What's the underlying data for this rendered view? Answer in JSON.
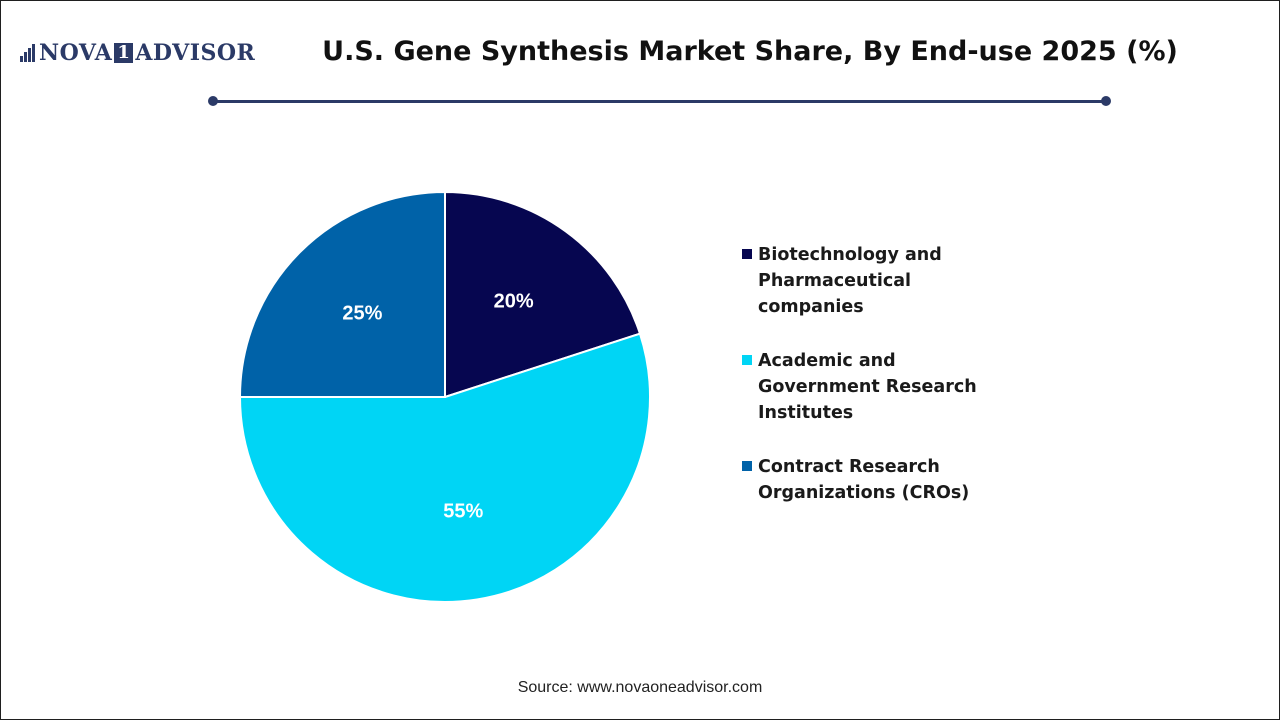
{
  "header": {
    "logo_text_left": "NOVA",
    "logo_text_mid": "1",
    "logo_text_right": "ADVISOR",
    "title": "U.S. Gene Synthesis Market Share, By End-use 2025 (%)"
  },
  "colors": {
    "accent": "#2b3a67"
  },
  "chart_data": {
    "type": "pie",
    "title": "U.S. Gene Synthesis Market Share, By End-use 2025 (%)",
    "slices": [
      {
        "name": "Biotechnology and Pharmaceutical companies",
        "value": 20,
        "label": "20%",
        "color": "#060650"
      },
      {
        "name": "Academic and Government Research Institutes",
        "value": 55,
        "label": "55%",
        "color": "#00d5f5"
      },
      {
        "name": "Contract Research Organizations (CROs)",
        "value": 25,
        "label": "25%",
        "color": "#0062a8"
      }
    ],
    "legend_position": "right"
  },
  "footer": {
    "source": "Source: www.novaoneadvisor.com"
  }
}
